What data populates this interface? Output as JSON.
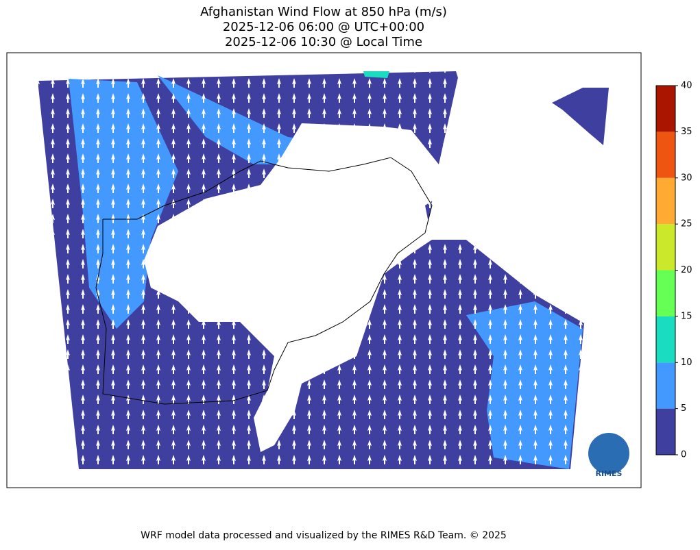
{
  "title": [
    "Afghanistan Wind Flow at 850 hPa (m/s)",
    "2025-12-06 06:00 @ UTC+00:00",
    "2025-12-06 10:30 @ Local Time"
  ],
  "colorbar": {
    "ticks": [
      0,
      5,
      10,
      15,
      20,
      25,
      30,
      35,
      40
    ],
    "colors": [
      "#3f3fa0",
      "#4499ff",
      "#1adcc0",
      "#66ff55",
      "#cce82a",
      "#ffaa33",
      "#ee5511",
      "#aa1500"
    ]
  },
  "logo": "RIMES",
  "footer": "WRF model data processed and visualized by the RIMES R&D Team. © 2025"
}
